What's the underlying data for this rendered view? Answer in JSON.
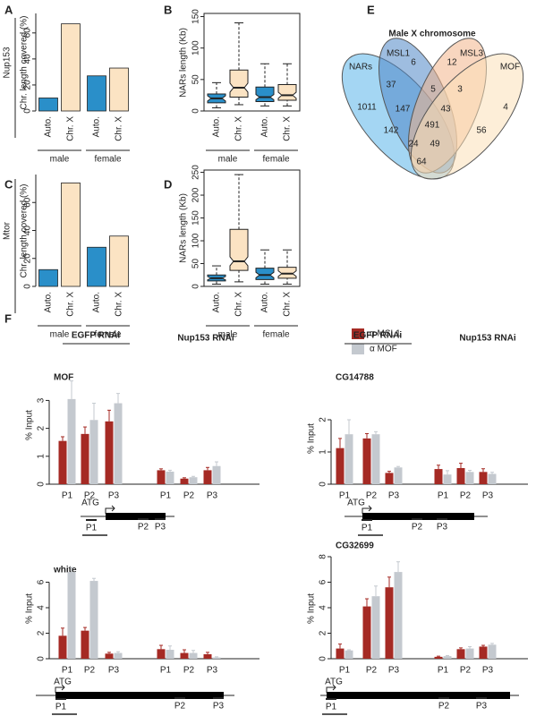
{
  "chart_data": [
    {
      "type": "bar",
      "panel": "A",
      "side_label": "Nup153",
      "y_label": "Chr. length covered (%)",
      "categories": [
        "Auto.",
        "Chr. X",
        "Auto.",
        "Chr. X"
      ],
      "groups": [
        "male",
        "female"
      ],
      "values": [
        10,
        67,
        27,
        33
      ],
      "colors": [
        "#2a8fc9",
        "#fbe3c3",
        "#2a8fc9",
        "#fbe3c3"
      ],
      "ylim": [
        0,
        75
      ],
      "yticks": [
        0,
        20,
        40,
        60
      ]
    },
    {
      "type": "box",
      "panel": "B",
      "y_label": "NARs length (Kb)",
      "categories": [
        "Auto.",
        "Chr. X",
        "Auto.",
        "Chr. X"
      ],
      "groups": [
        "male",
        "female"
      ],
      "boxes": [
        {
          "min": 5,
          "q1": 13,
          "median": 20,
          "q3": 27,
          "max": 45
        },
        {
          "min": 10,
          "q1": 22,
          "median": 37,
          "q3": 65,
          "max": 140
        },
        {
          "min": 8,
          "q1": 15,
          "median": 22,
          "q3": 38,
          "max": 75
        },
        {
          "min": 8,
          "q1": 17,
          "median": 25,
          "q3": 42,
          "max": 75
        }
      ],
      "colors": [
        "#2a8fc9",
        "#fbe3c3",
        "#2a8fc9",
        "#fbe3c3"
      ],
      "ylim": [
        0,
        155
      ],
      "yticks": [
        0,
        50,
        100,
        150
      ]
    },
    {
      "type": "bar",
      "panel": "C",
      "side_label": "Mtor",
      "y_label": "Chr. length covered (%)",
      "categories": [
        "Auto.",
        "Chr. X",
        "Auto.",
        "Chr. X"
      ],
      "groups": [
        "male",
        "female"
      ],
      "values": [
        12,
        74,
        28,
        36
      ],
      "colors": [
        "#2a8fc9",
        "#fbe3c3",
        "#2a8fc9",
        "#fbe3c3"
      ],
      "ylim": [
        0,
        80
      ],
      "yticks": [
        0,
        20,
        40,
        60
      ]
    },
    {
      "type": "box",
      "panel": "D",
      "y_label": "NARs length (Kb)",
      "categories": [
        "Auto.",
        "Chr. X",
        "Auto.",
        "Chr. X"
      ],
      "groups": [
        "male",
        "female"
      ],
      "boxes": [
        {
          "min": 5,
          "q1": 12,
          "median": 18,
          "q3": 25,
          "max": 45
        },
        {
          "min": 10,
          "q1": 35,
          "median": 55,
          "q3": 125,
          "max": 245
        },
        {
          "min": 5,
          "q1": 15,
          "median": 25,
          "q3": 40,
          "max": 80
        },
        {
          "min": 5,
          "q1": 18,
          "median": 28,
          "q3": 42,
          "max": 80
        }
      ],
      "colors": [
        "#2a8fc9",
        "#fbe3c3",
        "#2a8fc9",
        "#fbe3c3"
      ],
      "ylim": [
        0,
        255
      ],
      "yticks": [
        0,
        50,
        100,
        150,
        200,
        250
      ]
    },
    {
      "type": "venn",
      "panel": "E",
      "title": "Male X chromosome",
      "sets": [
        "NARs",
        "MSL1",
        "MSL3",
        "MOF"
      ],
      "colors": [
        "#5ab4ea",
        "#4f86c6",
        "#f3b48a",
        "#fbe0b8"
      ],
      "values": [
        1011,
        6,
        12,
        4,
        37,
        5,
        3,
        147,
        43,
        142,
        491,
        56,
        24,
        49,
        64
      ]
    },
    {
      "type": "grouped_bar",
      "panel": "F",
      "gene": "MOF",
      "y_label": "% Input",
      "groups": [
        "EGFP RNAi",
        "Nup153 RNAi"
      ],
      "categories": [
        "P1",
        "P2",
        "P3",
        "P1",
        "P2",
        "P3"
      ],
      "gene_labels": [
        "ATG",
        "P1",
        "P2",
        "P3"
      ],
      "series": [
        {
          "name": "α MSL1",
          "color": "#a52a24",
          "values": [
            1.55,
            1.8,
            2.25,
            0.5,
            0.2,
            0.5
          ],
          "errors": [
            0.15,
            0.25,
            0.4,
            0.05,
            0.03,
            0.1
          ]
        },
        {
          "name": "α MOF",
          "color": "#c4c9cf",
          "values": [
            3.05,
            2.3,
            2.9,
            0.45,
            0.25,
            0.65
          ],
          "errors": [
            0.65,
            0.6,
            0.35,
            0.05,
            0.03,
            0.15
          ]
        }
      ],
      "ylim": [
        0,
        4.2
      ],
      "yticks": [
        0,
        1,
        2,
        3
      ]
    },
    {
      "type": "grouped_bar",
      "gene": "CG14788",
      "y_label": "% Input",
      "groups": [
        "EGFP RNAi",
        "Nup153 RNAi"
      ],
      "categories": [
        "P1",
        "P2",
        "P3",
        "P1",
        "P2",
        "P3"
      ],
      "gene_labels": [
        "ATG",
        "P1",
        "P2",
        "P3"
      ],
      "series": [
        {
          "color": "#a52a24",
          "values": [
            1.12,
            1.42,
            0.35,
            0.47,
            0.5,
            0.38
          ],
          "errors": [
            0.3,
            0.15,
            0.05,
            0.12,
            0.15,
            0.1
          ]
        },
        {
          "color": "#c4c9cf",
          "values": [
            1.55,
            1.55,
            0.52,
            0.3,
            0.38,
            0.32
          ],
          "errors": [
            0.45,
            0.08,
            0.03,
            0.12,
            0.05,
            0.05
          ]
        }
      ],
      "ylim": [
        0,
        2.5
      ],
      "yticks": [
        0,
        1,
        2
      ]
    },
    {
      "type": "grouped_bar",
      "gene": "white",
      "y_label": "% Input",
      "categories": [
        "P1",
        "P2",
        "P3",
        "P1",
        "P2",
        "P3"
      ],
      "gene_labels": [
        "ATG",
        "P1",
        "P2",
        "P3"
      ],
      "series": [
        {
          "color": "#a52a24",
          "values": [
            1.8,
            2.2,
            0.4,
            0.75,
            0.45,
            0.35
          ],
          "errors": [
            0.6,
            0.25,
            0.1,
            0.3,
            0.25,
            0.15
          ]
        },
        {
          "color": "#c4c9cf",
          "values": [
            6.8,
            6.1,
            0.45,
            0.7,
            0.45,
            0.1
          ],
          "errors": [
            0.35,
            0.2,
            0.1,
            0.3,
            0.2,
            0.05
          ]
        }
      ],
      "ylim": [
        0,
        8
      ],
      "yticks": [
        0,
        2,
        4,
        6
      ]
    },
    {
      "type": "grouped_bar",
      "gene": "CG32699",
      "y_label": "% Input",
      "categories": [
        "P1",
        "P2",
        "P3",
        "P1",
        "P2",
        "P3"
      ],
      "gene_labels": [
        "ATG",
        "P1",
        "P2",
        "P3"
      ],
      "series": [
        {
          "color": "#a52a24",
          "values": [
            0.8,
            4.1,
            5.6,
            0.15,
            0.75,
            0.95
          ],
          "errors": [
            0.35,
            0.6,
            0.8,
            0.05,
            0.1,
            0.1
          ]
        },
        {
          "color": "#c4c9cf",
          "values": [
            0.65,
            4.9,
            6.8,
            0.2,
            0.8,
            1.1
          ],
          "errors": [
            0.05,
            0.8,
            0.8,
            0.05,
            0.15,
            0.1
          ]
        }
      ],
      "ylim": [
        0,
        8
      ],
      "yticks": [
        0,
        2,
        4,
        6,
        8
      ]
    }
  ]
}
